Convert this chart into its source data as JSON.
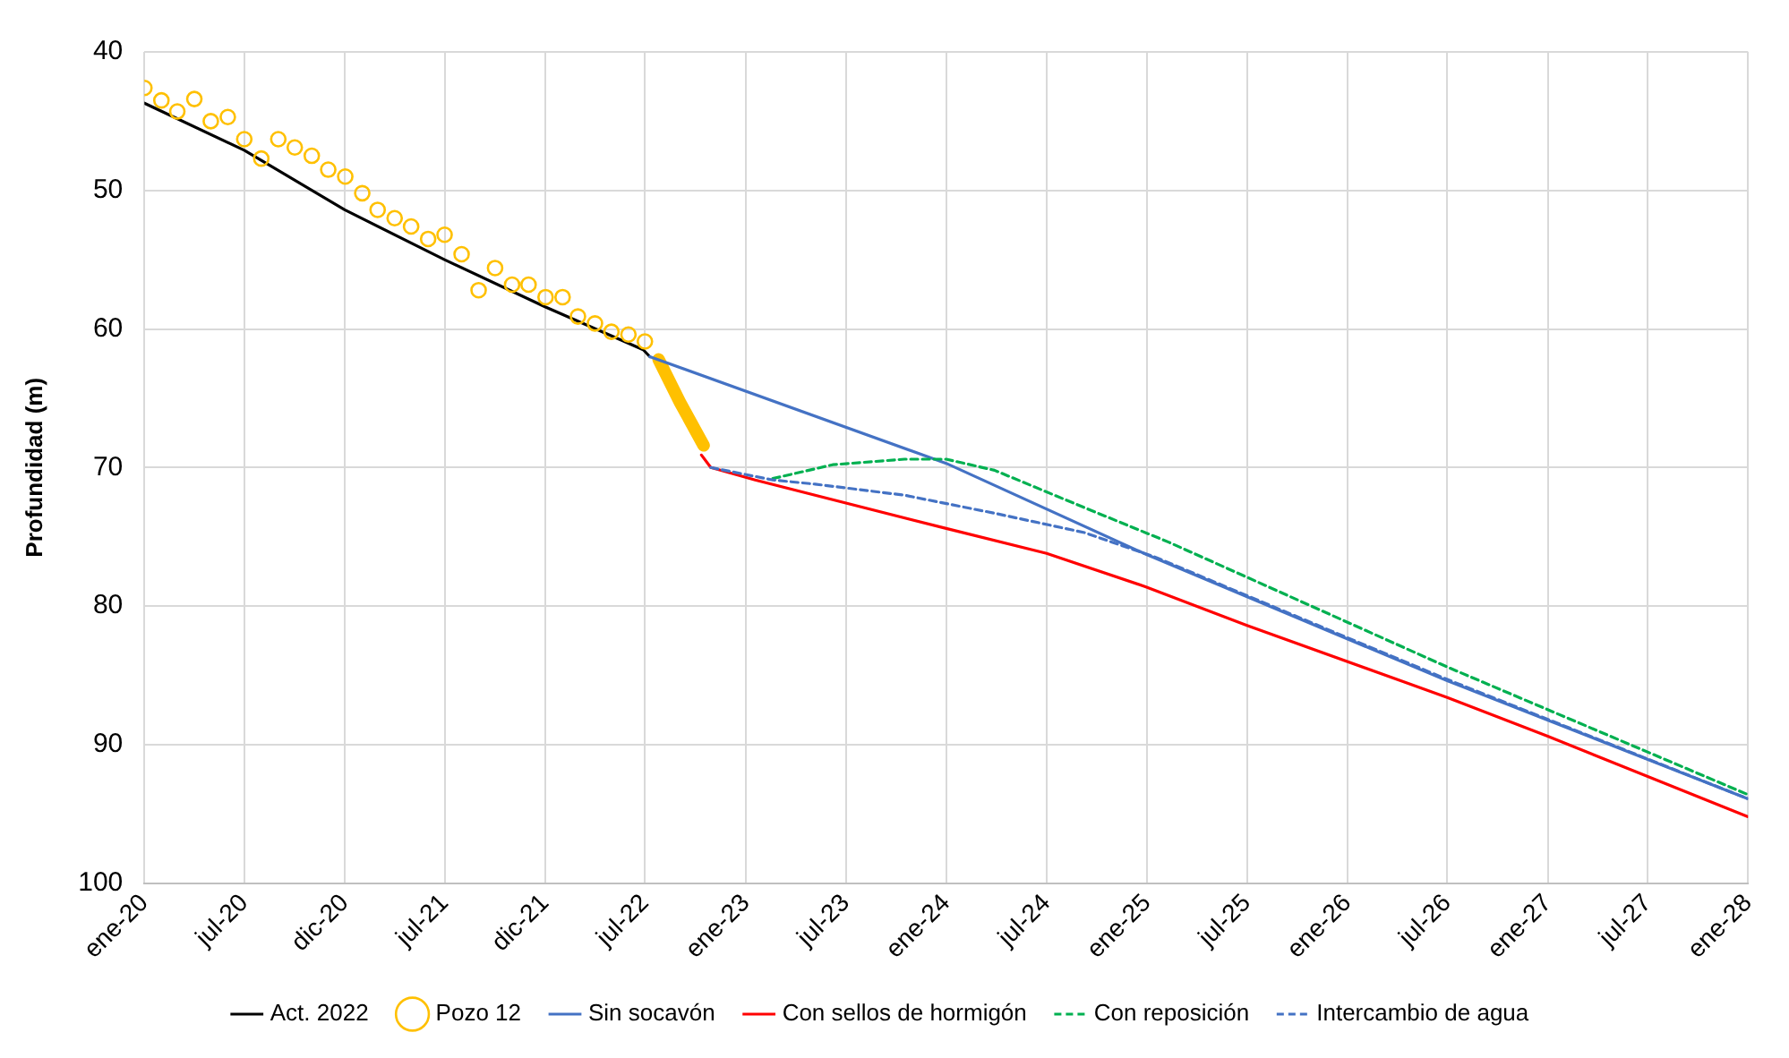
{
  "chart_data": {
    "type": "line",
    "ylabel": "Profundidad (m)",
    "ylim": [
      100,
      40
    ],
    "yticks": [
      40,
      50,
      60,
      70,
      80,
      90,
      100
    ],
    "xlim": [
      "2020-01-01",
      "2028-01-01"
    ],
    "xticks": [
      {
        "value": "2020-01-01",
        "label": "ene-20"
      },
      {
        "value": "2020-07-01",
        "label": "jul-20"
      },
      {
        "value": "2020-12-31",
        "label": "dic-20"
      },
      {
        "value": "2021-07-01",
        "label": "jul-21"
      },
      {
        "value": "2021-12-31",
        "label": "dic-21"
      },
      {
        "value": "2022-07-01",
        "label": "jul-22"
      },
      {
        "value": "2023-01-01",
        "label": "ene-23"
      },
      {
        "value": "2023-07-02",
        "label": "jul-23"
      },
      {
        "value": "2024-01-01",
        "label": "ene-24"
      },
      {
        "value": "2024-07-02",
        "label": "jul-24"
      },
      {
        "value": "2025-01-01",
        "label": "ene-25"
      },
      {
        "value": "2025-07-02",
        "label": "jul-25"
      },
      {
        "value": "2026-01-01",
        "label": "ene-26"
      },
      {
        "value": "2026-07-02",
        "label": "jul-26"
      },
      {
        "value": "2027-01-01",
        "label": "ene-27"
      },
      {
        "value": "2027-07-02",
        "label": "jul-27"
      },
      {
        "value": "2028-01-01",
        "label": "ene-28"
      }
    ],
    "grid": true,
    "legend": "bottom",
    "series": [
      {
        "name": "Act. 2022",
        "color": "#000000",
        "line_style": "solid",
        "marker": "none",
        "x": [
          "2020-01-01",
          "2020-07-01",
          "2020-12-31",
          "2021-07-01",
          "2021-12-31",
          "2022-06-28",
          "2022-07-10"
        ],
        "values": [
          43.7,
          47.1,
          51.4,
          55.0,
          58.4,
          61.5,
          62.0
        ]
      },
      {
        "name": "Pozo 12",
        "type": "scatter",
        "color": "#ffc000",
        "marker": "circle",
        "x": [
          "2020-01-01",
          "2020-02-01",
          "2020-03-01",
          "2020-04-01",
          "2020-05-01",
          "2020-06-01",
          "2020-07-01",
          "2020-08-01",
          "2020-09-01",
          "2020-10-01",
          "2020-11-01",
          "2020-12-01",
          "2021-01-01",
          "2021-02-01",
          "2021-03-01",
          "2021-04-01",
          "2021-05-01",
          "2021-06-01",
          "2021-07-01",
          "2021-08-01",
          "2021-09-01",
          "2021-10-01",
          "2021-11-01",
          "2021-12-01",
          "2022-01-01",
          "2022-02-01",
          "2022-03-01",
          "2022-04-01",
          "2022-05-01",
          "2022-06-01",
          "2022-07-01"
        ],
        "values": [
          42.6,
          43.5,
          44.3,
          43.4,
          45.0,
          44.7,
          46.3,
          47.7,
          46.3,
          46.9,
          47.5,
          48.5,
          49.0,
          50.2,
          51.4,
          52.0,
          52.6,
          53.5,
          53.2,
          54.6,
          57.2,
          55.6,
          56.8,
          56.8,
          57.7,
          57.7,
          59.1,
          59.6,
          60.2,
          60.4,
          60.9
        ]
      },
      {
        "color": "#ffc000",
        "line_style": "solid",
        "marker": "none",
        "x": [
          "2022-07-26",
          "2022-09-03",
          "2022-10-16"
        ],
        "values": [
          62.2,
          65.3,
          68.4
        ]
      },
      {
        "name": "Sin socavón",
        "color": "#4472c4",
        "line_style": "solid",
        "marker": "none",
        "x": [
          "2022-07-10",
          "2024-01-01",
          "2025-01-01",
          "2026-07-02",
          "2027-12-31"
        ],
        "values": [
          62.0,
          69.7,
          76.3,
          85.4,
          93.9
        ]
      },
      {
        "name": "Con sellos de hormigón",
        "color": "#ff0000",
        "line_style": "solid",
        "marker": "none",
        "x": [
          "2022-10-12",
          "2022-10-29",
          "2023-01-18",
          "2024-01-01",
          "2024-07-02",
          "2024-12-29",
          "2025-07-02",
          "2026-07-02",
          "2027-01-01",
          "2027-12-31"
        ],
        "values": [
          69.1,
          70.0,
          70.9,
          74.4,
          76.2,
          78.6,
          81.4,
          86.6,
          89.4,
          95.2
        ]
      },
      {
        "name": "Con reposición",
        "color": "#00b050",
        "line_style": "dashed",
        "marker": "none",
        "x": [
          "2023-02-19",
          "2023-06-08",
          "2023-10-17",
          "2024-01-01",
          "2024-03-29",
          "2024-09-09",
          "2025-02-10",
          "2026-07-02",
          "2027-12-31"
        ],
        "values": [
          70.8,
          69.8,
          69.4,
          69.4,
          70.2,
          72.9,
          75.4,
          84.4,
          93.6
        ]
      },
      {
        "name": "Intercambio de agua",
        "color": "#4472c4",
        "line_style": "dashed",
        "marker": "none",
        "x": [
          "2022-10-29",
          "2023-02-19",
          "2023-05-07",
          "2023-10-17",
          "2024-03-29",
          "2024-09-09",
          "2025-01-18",
          "2025-07-23",
          "2026-07-02",
          "2027-12-31"
        ],
        "values": [
          70.0,
          70.9,
          71.2,
          72.0,
          73.3,
          74.7,
          76.5,
          79.6,
          85.3,
          93.9
        ]
      }
    ]
  }
}
